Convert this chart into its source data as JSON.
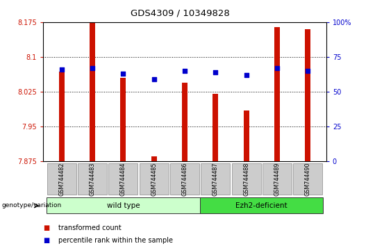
{
  "title": "GDS4309 / 10349828",
  "samples": [
    "GSM744482",
    "GSM744483",
    "GSM744484",
    "GSM744485",
    "GSM744486",
    "GSM744487",
    "GSM744488",
    "GSM744489",
    "GSM744490"
  ],
  "transformed_count": [
    8.068,
    8.175,
    8.055,
    7.885,
    8.045,
    8.02,
    7.985,
    8.165,
    8.16
  ],
  "percentile_rank": [
    66,
    67,
    63,
    59,
    65,
    64,
    62,
    67,
    65
  ],
  "ylim_left": [
    7.875,
    8.175
  ],
  "ylim_right": [
    0,
    100
  ],
  "yticks_left": [
    7.875,
    7.95,
    8.025,
    8.1,
    8.175
  ],
  "ytick_labels_left": [
    "7.875",
    "7.95",
    "8.025",
    "8.1",
    "8.175"
  ],
  "yticks_right": [
    0,
    25,
    50,
    75,
    100
  ],
  "ytick_labels_right": [
    "0",
    "25",
    "50",
    "75",
    "100%"
  ],
  "gridlines": [
    7.95,
    8.025,
    8.1
  ],
  "bar_color": "#cc1100",
  "dot_color": "#0000cc",
  "bar_width": 0.18,
  "groups": [
    {
      "label": "wild type",
      "indices": [
        0,
        1,
        2,
        3,
        4
      ],
      "color": "#ccffcc"
    },
    {
      "label": "Ezh2-deficient",
      "indices": [
        5,
        6,
        7,
        8
      ],
      "color": "#44dd44"
    }
  ],
  "group_label": "genotype/variation",
  "legend_items": [
    {
      "label": "transformed count",
      "color": "#cc1100"
    },
    {
      "label": "percentile rank within the sample",
      "color": "#0000cc"
    }
  ],
  "background_color": "#ffffff",
  "plot_bg_color": "#ffffff",
  "tick_color_left": "#cc1100",
  "tick_color_right": "#0000cc"
}
